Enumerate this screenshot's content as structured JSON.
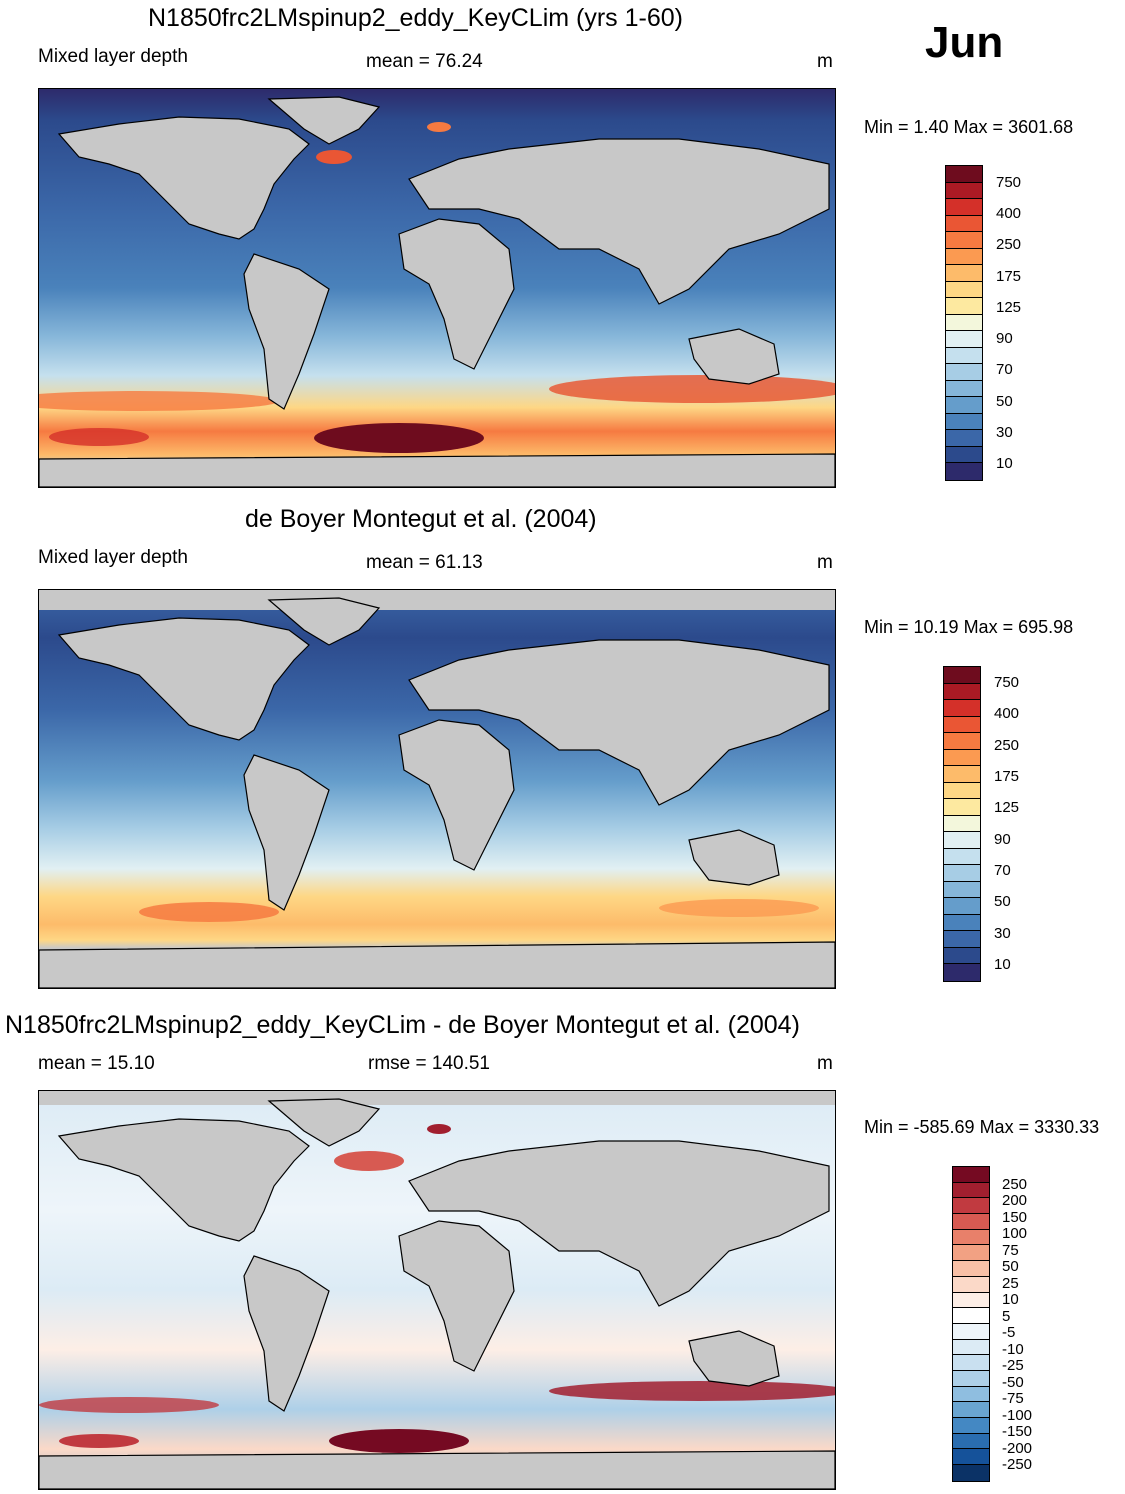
{
  "month": "Jun",
  "panels": [
    {
      "id": "model",
      "title": "N1850frc2LMspinup2_eddy_KeyCLim (yrs 1-60)",
      "left_label": "Mixed layer depth",
      "center_label": "mean =  76.24",
      "units": "m",
      "minmax": "Min =   1.40 Max = 3601.68",
      "colorbar": {
        "colors": [
          "#2d2a6b",
          "#2c4a8c",
          "#3b67a8",
          "#4a82bb",
          "#659dcb",
          "#86b6d9",
          "#a7cde5",
          "#c5e0ee",
          "#e1f0f3",
          "#f3f7dc",
          "#fde9a0",
          "#fed785",
          "#fdbb6a",
          "#fb9a51",
          "#f67a41",
          "#ea5634",
          "#d43029",
          "#ab1a24",
          "#6e0c1e"
        ],
        "labels": [
          "750",
          "400",
          "250",
          "175",
          "125",
          "90",
          "70",
          "50",
          "30",
          "10"
        ]
      }
    },
    {
      "id": "obs",
      "title": "de Boyer Montegut et al. (2004)",
      "left_label": "Mixed layer depth",
      "center_label": "mean =  61.13",
      "units": "m",
      "minmax": "Min =  10.19 Max = 695.98",
      "colorbar": {
        "colors": [
          "#2d2a6b",
          "#2c4a8c",
          "#3b67a8",
          "#4a82bb",
          "#659dcb",
          "#86b6d9",
          "#a7cde5",
          "#c5e0ee",
          "#e1f0f3",
          "#f3f7dc",
          "#fde9a0",
          "#fed785",
          "#fdbb6a",
          "#fb9a51",
          "#f67a41",
          "#ea5634",
          "#d43029",
          "#ab1a24",
          "#6e0c1e"
        ],
        "labels": [
          "750",
          "400",
          "250",
          "175",
          "125",
          "90",
          "70",
          "50",
          "30",
          "10"
        ]
      }
    },
    {
      "id": "diff",
      "title": "N1850frc2LMspinup2_eddy_KeyCLim - de Boyer Montegut et al. (2004)",
      "left_label": "mean =  15.10",
      "center_label": "rmse = 140.51",
      "units": "m",
      "minmax": "Min = -585.69 Max = 3330.33",
      "colorbar": {
        "colors": [
          "#0b3266",
          "#15529a",
          "#2a6db0",
          "#4488c3",
          "#6aa5d1",
          "#8fbee0",
          "#aed0e8",
          "#c9e0f0",
          "#dcebf5",
          "#eef5fa",
          "#ffffff",
          "#fdeee6",
          "#fbd9c8",
          "#f8c0a6",
          "#f2a183",
          "#e8806a",
          "#d75a52",
          "#c13a40",
          "#a11f2f",
          "#750a22"
        ],
        "labels": [
          "250",
          "200",
          "150",
          "100",
          "75",
          "50",
          "25",
          "10",
          "5",
          "-5",
          "-10",
          "-25",
          "-50",
          "-75",
          "-100",
          "-150",
          "-200",
          "-250"
        ]
      }
    }
  ]
}
